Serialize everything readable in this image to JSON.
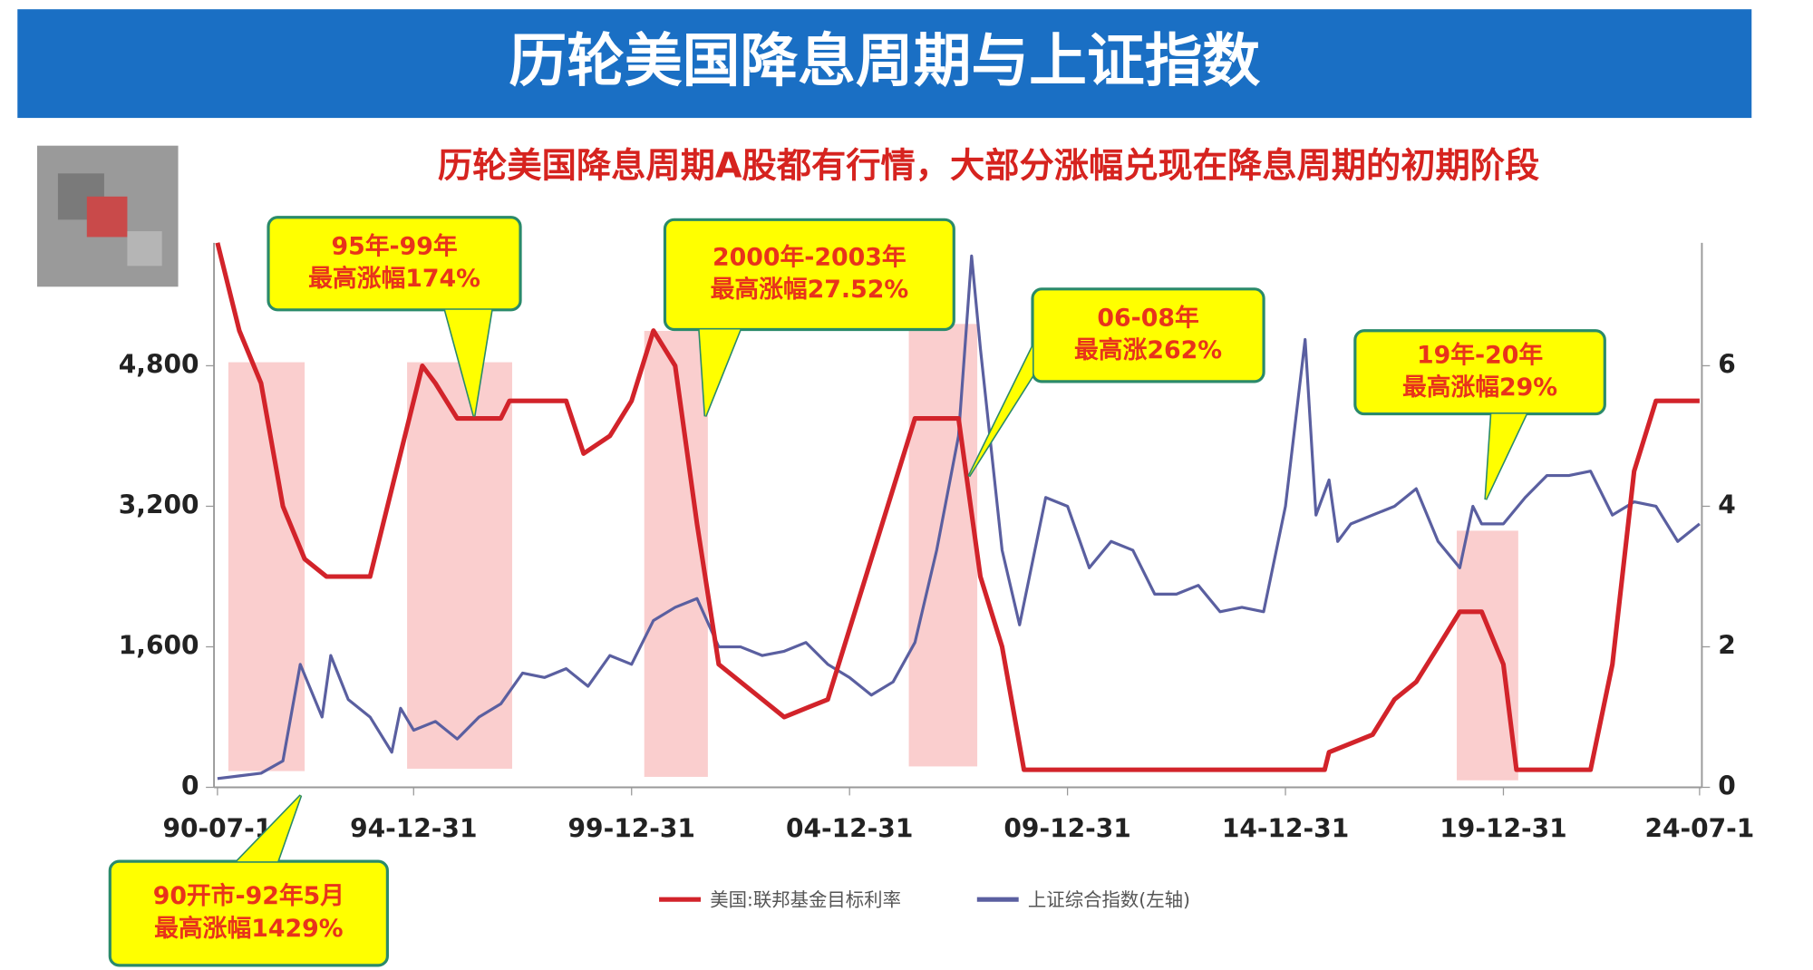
{
  "chart_data": {
    "type": "line",
    "title": "历轮美国降息周期与上证指数",
    "subtitle": "历轮美国降息周期A股都有行情，大部分涨幅兑现在降息周期的初期阶段",
    "xlim": [
      1990.5,
      2024.5
    ],
    "xticks": [
      {
        "value": 1990.5,
        "label": "90-07-1"
      },
      {
        "value": 1995.0,
        "label": "94-12-31"
      },
      {
        "value": 2000.0,
        "label": "99-12-31"
      },
      {
        "value": 2005.0,
        "label": "04-12-31"
      },
      {
        "value": 2010.0,
        "label": "09-12-31"
      },
      {
        "value": 2015.0,
        "label": "14-12-31"
      },
      {
        "value": 2020.0,
        "label": "19-12-31"
      },
      {
        "value": 2024.5,
        "label": "24-07-1"
      }
    ],
    "ylim": [
      0,
      6200
    ],
    "yticks": [
      0,
      {
        "value": 1600,
        "label": "1,600"
      },
      {
        "value": 3200,
        "label": "3,200"
      },
      {
        "value": 4800,
        "label": "4,800"
      }
    ],
    "y2lim": [
      0,
      7.75
    ],
    "y2ticks": [
      0,
      2,
      4,
      6
    ],
    "series": [
      {
        "name": "美国:联邦基金目标利率",
        "color": "#d2232a",
        "axis": "y2",
        "x": [
          1990.5,
          1991.0,
          1991.5,
          1992.0,
          1992.5,
          1993.0,
          1994.0,
          1994.5,
          1995.0,
          1995.2,
          1995.5,
          1996.0,
          1997.0,
          1997.2,
          1998.5,
          1998.9,
          1999.5,
          2000.0,
          2000.5,
          2001.0,
          2001.5,
          2002.0,
          2003.0,
          2003.5,
          2004.5,
          2005.0,
          2006.0,
          2006.5,
          2007.5,
          2008.0,
          2008.5,
          2009.0,
          2015.9,
          2016.0,
          2017.0,
          2017.5,
          2018.0,
          2018.5,
          2019.0,
          2019.5,
          2020.0,
          2020.3,
          2022.0,
          2022.5,
          2023.0,
          2023.5,
          2024.5
        ],
        "values": [
          7.75,
          6.5,
          5.75,
          4.0,
          3.25,
          3.0,
          3.0,
          4.25,
          5.5,
          6.0,
          5.75,
          5.25,
          5.25,
          5.5,
          5.5,
          4.75,
          5.0,
          5.5,
          6.5,
          6.0,
          3.75,
          1.75,
          1.25,
          1.0,
          1.25,
          2.25,
          4.25,
          5.25,
          5.25,
          3.0,
          2.0,
          0.25,
          0.25,
          0.5,
          0.75,
          1.25,
          1.5,
          2.0,
          2.5,
          2.5,
          1.75,
          0.25,
          0.25,
          1.75,
          4.5,
          5.5,
          5.5
        ]
      },
      {
        "name": "上证综合指数(左轴)",
        "color": "#5a5fa0",
        "axis": "y",
        "x": [
          1990.5,
          1991.0,
          1991.5,
          1992.0,
          1992.4,
          1992.9,
          1993.1,
          1993.5,
          1994.0,
          1994.5,
          1994.7,
          1995.0,
          1995.5,
          1996.0,
          1996.5,
          1997.0,
          1997.5,
          1998.0,
          1998.5,
          1999.0,
          1999.5,
          2000.0,
          2000.5,
          2001.0,
          2001.5,
          2002.0,
          2002.5,
          2003.0,
          2003.5,
          2004.0,
          2004.5,
          2005.0,
          2005.5,
          2006.0,
          2006.5,
          2007.0,
          2007.5,
          2007.8,
          2008.0,
          2008.5,
          2008.9,
          2009.5,
          2010.0,
          2010.5,
          2011.0,
          2011.5,
          2012.0,
          2012.5,
          2013.0,
          2013.5,
          2014.0,
          2014.5,
          2015.0,
          2015.45,
          2015.7,
          2016.0,
          2016.2,
          2016.5,
          2017.0,
          2017.5,
          2018.0,
          2018.5,
          2019.0,
          2019.3,
          2019.5,
          2020.0,
          2020.5,
          2021.0,
          2021.5,
          2022.0,
          2022.5,
          2023.0,
          2023.5,
          2024.0,
          2024.5
        ],
        "values": [
          100,
          130,
          160,
          300,
          1400,
          800,
          1500,
          1000,
          800,
          400,
          900,
          650,
          750,
          550,
          800,
          950,
          1300,
          1250,
          1350,
          1150,
          1500,
          1400,
          1900,
          2050,
          2150,
          1600,
          1600,
          1500,
          1550,
          1650,
          1400,
          1250,
          1050,
          1200,
          1650,
          2700,
          4000,
          6050,
          5000,
          2700,
          1850,
          3300,
          3200,
          2500,
          2800,
          2700,
          2200,
          2200,
          2300,
          2000,
          2050,
          2000,
          3200,
          5100,
          3100,
          3500,
          2800,
          3000,
          3100,
          3200,
          3400,
          2800,
          2500,
          3200,
          3000,
          3000,
          3300,
          3550,
          3550,
          3600,
          3100,
          3250,
          3200,
          2800,
          3000
        ]
      }
    ],
    "shaded_periods": [
      {
        "x": [
          1990.75,
          1992.5
        ],
        "y": [
          185,
          4840
        ]
      },
      {
        "x": [
          1994.85,
          1997.26
        ],
        "y": [
          212,
          4840
        ]
      },
      {
        "x": [
          2000.29,
          2001.75
        ],
        "y": [
          119,
          5197
        ]
      },
      {
        "x": [
          2006.36,
          2007.93
        ],
        "y": [
          238,
          5276
        ]
      },
      {
        "x": [
          2018.93,
          2020.34
        ],
        "y": [
          80,
          2922
        ]
      }
    ],
    "annotations": [
      {
        "text": [
          "95年-99年",
          "最高涨幅174%"
        ]
      },
      {
        "text": [
          "2000年-2003年",
          "最高涨幅27.52%"
        ]
      },
      {
        "text": [
          "06-08年",
          "最高涨262%"
        ]
      },
      {
        "text": [
          "19年-20年",
          "最高涨幅29%"
        ]
      },
      {
        "text": [
          "90开市-92年5月",
          "最高涨幅1429%"
        ]
      }
    ]
  }
}
